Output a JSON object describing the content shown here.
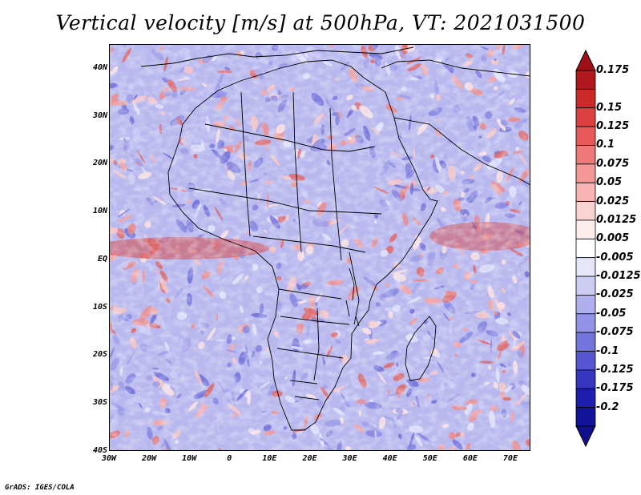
{
  "title": "Vertical velocity [m/s] at 500hPa, VT: 2021031500",
  "footer": "GrADS: IGES/COLA",
  "map": {
    "region": "Africa",
    "projection": "latlon",
    "lon_range": [
      -30,
      75
    ],
    "lat_range": [
      -40,
      45
    ],
    "lat_ticks": [
      {
        "value": 40,
        "label": "40N"
      },
      {
        "value": 30,
        "label": "30N"
      },
      {
        "value": 20,
        "label": "20N"
      },
      {
        "value": 10,
        "label": "10N"
      },
      {
        "value": 0,
        "label": "EQ"
      },
      {
        "value": -10,
        "label": "10S"
      },
      {
        "value": -20,
        "label": "20S"
      },
      {
        "value": -30,
        "label": "30S"
      },
      {
        "value": -40,
        "label": "40S"
      }
    ],
    "lon_ticks": [
      {
        "value": -30,
        "label": "30W"
      },
      {
        "value": -20,
        "label": "20W"
      },
      {
        "value": -10,
        "label": "10W"
      },
      {
        "value": 0,
        "label": "0"
      },
      {
        "value": 10,
        "label": "10E"
      },
      {
        "value": 20,
        "label": "20E"
      },
      {
        "value": 30,
        "label": "30E"
      },
      {
        "value": 40,
        "label": "40E"
      },
      {
        "value": 50,
        "label": "50E"
      },
      {
        "value": 60,
        "label": "60E"
      },
      {
        "value": 70,
        "label": "70E"
      }
    ]
  },
  "colorbar": {
    "labels": [
      "0.175",
      "0.15",
      "0.125",
      "0.1",
      "0.075",
      "0.05",
      "0.025",
      "0.0125",
      "0.005",
      "-0.005",
      "-0.0125",
      "-0.025",
      "-0.05",
      "-0.075",
      "-0.1",
      "-0.125",
      "-0.175",
      "-0.2"
    ],
    "colors": [
      "#b0181e",
      "#cc2a2a",
      "#dd4040",
      "#e85a5a",
      "#ef7878",
      "#f39696",
      "#f7b2b2",
      "#fad2d2",
      "#fdecec",
      "#ffffff",
      "#e6e6fb",
      "#ccccf5",
      "#b0b0ee",
      "#9292e6",
      "#7474dd",
      "#5656d2",
      "#3636c2",
      "#1e1eae",
      "#12129a"
    ],
    "max_color": "#a01018",
    "min_color": "#10108c"
  }
}
